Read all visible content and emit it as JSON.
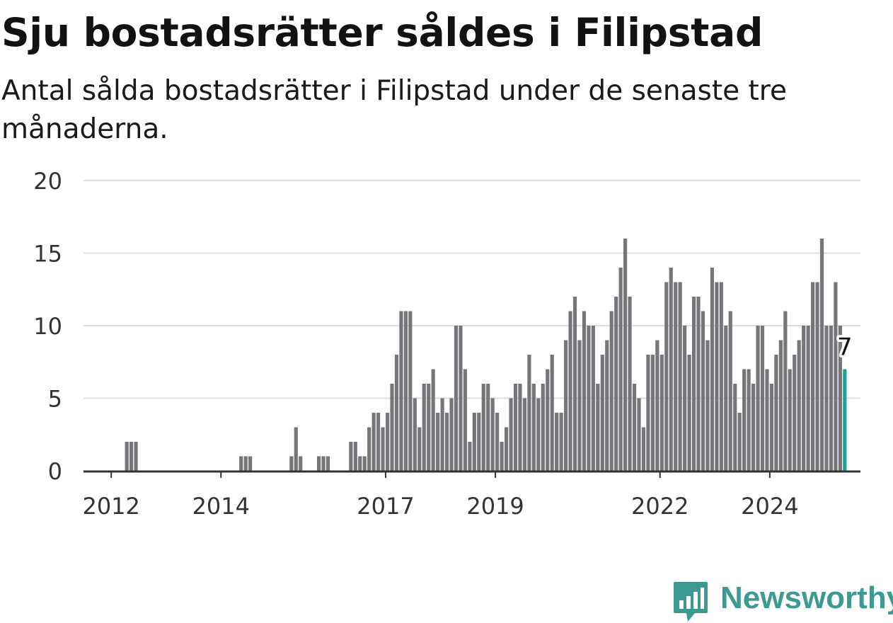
{
  "title": "Sju bostadsrätter såldes i Filipstad",
  "subtitle": "Antal sålda bostadsrätter i Filipstad under de senaste tre månaderna.",
  "brand": {
    "name": "Newsworthy",
    "color": "#3c9a92",
    "icon": "bar-chart-speech-bubble-icon"
  },
  "chart_data": {
    "type": "bar",
    "x_start": "2011-07",
    "x_interval": "month",
    "ylim": [
      0,
      20
    ],
    "yticks": [
      0,
      5,
      10,
      15,
      20
    ],
    "xticks": [
      "2012",
      "2014",
      "2017",
      "2019",
      "2022",
      "2024"
    ],
    "grid": true,
    "colors": {
      "bars": "#76767a",
      "highlight": "#1aa39b",
      "grid": "#dddddd",
      "axis": "#333333"
    },
    "values": [
      0,
      0,
      0,
      0,
      0,
      0,
      0,
      0,
      0,
      2,
      2,
      2,
      0,
      0,
      0,
      0,
      0,
      0,
      0,
      0,
      0,
      0,
      0,
      0,
      0,
      0,
      0,
      0,
      0,
      0,
      0,
      0,
      0,
      0,
      1,
      1,
      1,
      0,
      0,
      0,
      0,
      0,
      0,
      0,
      0,
      1,
      3,
      1,
      0,
      0,
      0,
      1,
      1,
      1,
      0,
      0,
      0,
      0,
      2,
      2,
      1,
      1,
      3,
      4,
      4,
      3,
      4,
      6,
      8,
      11,
      11,
      11,
      5,
      3,
      6,
      6,
      7,
      4,
      5,
      4,
      5,
      10,
      10,
      7,
      2,
      4,
      4,
      6,
      6,
      5,
      4,
      2,
      3,
      5,
      6,
      6,
      5,
      8,
      6,
      5,
      6,
      7,
      8,
      4,
      4,
      9,
      11,
      12,
      9,
      11,
      10,
      10,
      6,
      8,
      9,
      11,
      12,
      14,
      16,
      12,
      6,
      5,
      3,
      8,
      8,
      9,
      8,
      13,
      14,
      13,
      13,
      10,
      8,
      12,
      12,
      11,
      9,
      14,
      13,
      13,
      10,
      11,
      6,
      4,
      7,
      7,
      6,
      10,
      10,
      7,
      6,
      8,
      9,
      11,
      7,
      8,
      9,
      10,
      10,
      13,
      13,
      16,
      10,
      10,
      13,
      10,
      7
    ],
    "highlight_label": "7"
  }
}
